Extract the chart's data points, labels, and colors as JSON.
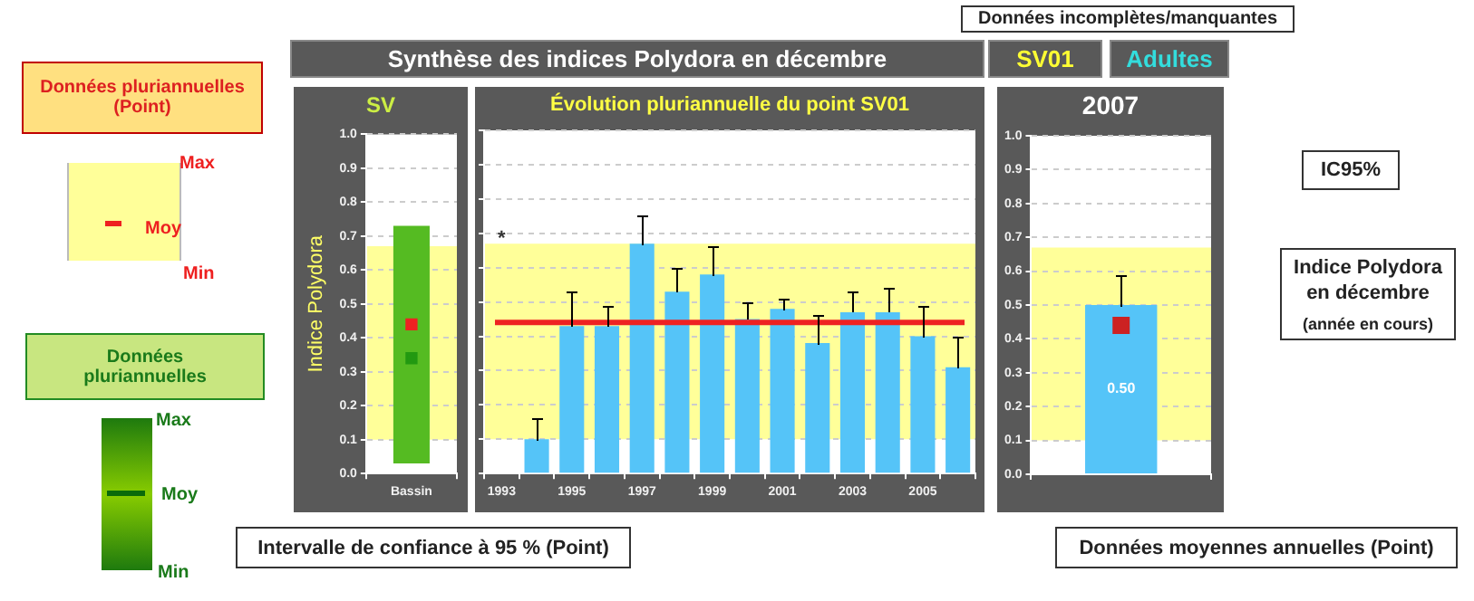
{
  "chart_data": [
    {
      "type": "bar",
      "title": "SV",
      "ylabel": "Indice Polydora",
      "categories": [
        "Bassin"
      ],
      "series": [
        {
          "values": [
            0.7
          ],
          "base": [
            0.03
          ],
          "color": "#55bb22"
        },
        {
          "type": "scatter",
          "values": [
            0.44
          ],
          "color": "#ee2222",
          "marker": "square"
        },
        {
          "type": "scatter",
          "values": [
            0.34
          ],
          "color": "#229911",
          "marker": "square"
        }
      ],
      "ylim": [
        0,
        1
      ],
      "yticks": [
        {
          "value": 0,
          "label": "0.0"
        },
        {
          "value": 0.1,
          "label": "0.1"
        },
        {
          "value": 0.2,
          "label": "0.2"
        },
        {
          "value": 0.3,
          "label": "0.3"
        },
        {
          "value": 0.4,
          "label": "0.4"
        },
        {
          "value": 0.5,
          "label": "0.5"
        },
        {
          "value": 0.6,
          "label": "0.6"
        },
        {
          "value": 0.7,
          "label": "0.7"
        },
        {
          "value": 0.8,
          "label": "0.8"
        },
        {
          "value": 0.9,
          "label": "0.9"
        },
        {
          "value": 1,
          "label": "1.0"
        }
      ],
      "grid": "y",
      "bands": [
        {
          "axis": "y",
          "from": 0.1,
          "to": 0.67,
          "color": "#ffff99"
        }
      ],
      "annotations": [
        "Données pluriannuelles (Point)",
        "Max",
        "Moy",
        "Min",
        "Données pluriannuelles",
        "Max",
        "Moy",
        "Min"
      ]
    },
    {
      "type": "bar",
      "title": "Évolution pluriannuelle du point SV01",
      "categories": [
        "1993",
        null,
        "1995",
        null,
        "1997",
        null,
        "1999",
        null,
        "2001",
        null,
        "2003",
        null,
        "2005",
        null
      ],
      "series": [
        {
          "values": [
            null,
            0.1,
            0.43,
            0.43,
            0.67,
            0.53,
            0.58,
            0.45,
            0.48,
            0.38,
            0.47,
            0.47,
            0.4,
            0.31
          ],
          "color": "#55c4f8",
          "errors": [
            null,
            [
              0.1,
              0.16
            ],
            [
              0.43,
              0.53
            ],
            [
              0.43,
              0.49
            ],
            [
              0.67,
              0.75
            ],
            [
              0.53,
              0.6
            ],
            [
              0.58,
              0.66
            ],
            [
              0.45,
              0.5
            ],
            [
              0.48,
              0.51
            ],
            [
              0.38,
              0.46
            ],
            [
              0.47,
              0.53
            ],
            [
              0.47,
              0.54
            ],
            [
              0.4,
              0.49
            ],
            [
              0.31,
              0.4
            ]
          ]
        }
      ],
      "ylim": [
        0,
        1
      ],
      "yticks": [
        {
          "value": 0,
          "label": null
        },
        {
          "value": 0.1,
          "label": null
        },
        {
          "value": 0.2,
          "label": null
        },
        {
          "value": 0.3,
          "label": null
        },
        {
          "value": 0.4,
          "label": null
        },
        {
          "value": 0.5,
          "label": null
        },
        {
          "value": 0.6,
          "label": null
        },
        {
          "value": 0.7,
          "label": null
        },
        {
          "value": 0.8,
          "label": null
        },
        {
          "value": 0.9,
          "label": null
        },
        {
          "value": 1,
          "label": null
        }
      ],
      "tick_labels": "x",
      "grid": "y",
      "bands": [
        {
          "axis": "y",
          "from": 0.1,
          "to": 0.67,
          "color": "#ffff99"
        }
      ],
      "ref_lines": [
        {
          "axis": "y",
          "value": 0.44,
          "color": "#ee2222"
        }
      ],
      "annotations": [
        "Synthèse des indices Polydora en décembre",
        "SV01",
        "Adultes",
        "Données incomplètes/manquantes",
        {
          "text": "*",
          "x": "1993",
          "y": 0.7
        },
        "Intervalle de confiance à 95 % (Point)",
        "Données moyennes annuelles (Point)"
      ]
    },
    {
      "type": "bar",
      "title": "2007",
      "categories": [
        null
      ],
      "series": [
        {
          "values": [
            0.5
          ],
          "color": "#55c4f8",
          "errors": [
            [
              0.5,
              0.59
            ]
          ],
          "value_labels": [
            "0.50"
          ]
        },
        {
          "type": "scatter",
          "values": [
            0.44
          ],
          "color": "#cc2222",
          "marker": "square"
        }
      ],
      "ylim": [
        0,
        1
      ],
      "yticks": [
        {
          "value": 0,
          "label": "0.0"
        },
        {
          "value": 0.1,
          "label": "0.1"
        },
        {
          "value": 0.2,
          "label": "0.2"
        },
        {
          "value": 0.3,
          "label": "0.3"
        },
        {
          "value": 0.4,
          "label": "0.4"
        },
        {
          "value": 0.5,
          "label": "0.5"
        },
        {
          "value": 0.6,
          "label": "0.6"
        },
        {
          "value": 0.7,
          "label": "0.7"
        },
        {
          "value": 0.8,
          "label": "0.8"
        },
        {
          "value": 0.9,
          "label": "0.9"
        },
        {
          "value": 1,
          "label": "1.0"
        }
      ],
      "tick_labels": "y",
      "grid": "y",
      "bands": [
        {
          "axis": "y",
          "from": 0.1,
          "to": 0.67,
          "color": "#ffff99"
        }
      ],
      "annotations": [
        "IC95%",
        "Indice Polydora en décembre",
        "(année en cours)"
      ]
    }
  ]
}
